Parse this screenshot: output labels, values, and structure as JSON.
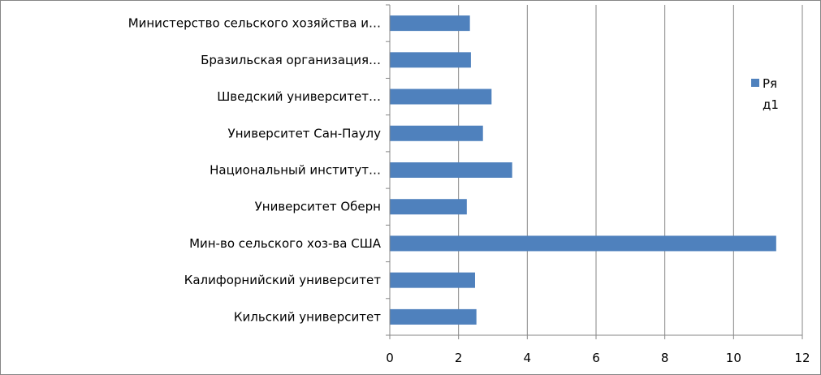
{
  "chart_data": {
    "type": "bar",
    "orientation": "horizontal",
    "categories": [
      "Министерство сельского хозяйства и…",
      "Бразильская организация…",
      "Шведский университет…",
      "Университет Сан-Паулу",
      "Национальный институт…",
      "Университет Оберн",
      "Мин-во сельского хоз-ва США",
      "Калифорнийский университет",
      "Кильский университет"
    ],
    "series": [
      {
        "name": "Ряд1",
        "values": [
          2.33,
          2.36,
          2.96,
          2.71,
          3.56,
          2.24,
          11.24,
          2.48,
          2.52
        ],
        "color": "#4f81bd"
      }
    ],
    "xlim": [
      0,
      12
    ],
    "xticks": [
      "0",
      "2",
      "4",
      "6",
      "8",
      "10",
      "12"
    ],
    "grid": true,
    "legend": {
      "placement": "right",
      "lines": [
        "Ря",
        "д1"
      ]
    }
  }
}
